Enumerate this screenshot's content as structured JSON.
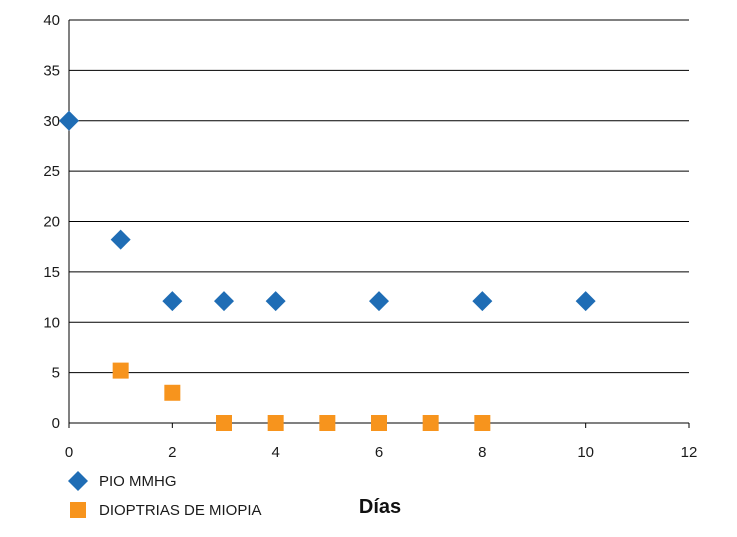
{
  "chart_data": {
    "type": "scatter",
    "xlabel": "Días",
    "ylabel": "",
    "xlim": [
      0,
      12
    ],
    "ylim": [
      0,
      40
    ],
    "x_ticks": [
      0,
      2,
      4,
      6,
      8,
      10,
      12
    ],
    "y_ticks": [
      0,
      5,
      10,
      15,
      20,
      25,
      30,
      35,
      40
    ],
    "grid": "horizontal",
    "legend_position": "bottom-left",
    "series": [
      {
        "name": "PIO MMHG",
        "marker": "diamond",
        "color": "#1F6DB5",
        "points": [
          [
            0,
            30
          ],
          [
            1,
            18.2
          ],
          [
            2,
            12.1
          ],
          [
            3,
            12.1
          ],
          [
            4,
            12.1
          ],
          [
            6,
            12.1
          ],
          [
            8,
            12.1
          ],
          [
            10,
            12.1
          ]
        ]
      },
      {
        "name": "DIOPTRIAS DE MIOPIA",
        "marker": "square",
        "color": "#F7941D",
        "points": [
          [
            1,
            5.2
          ],
          [
            2,
            3
          ],
          [
            3,
            0
          ],
          [
            4,
            0
          ],
          [
            5,
            0
          ],
          [
            6,
            0
          ],
          [
            7,
            0
          ],
          [
            8,
            0
          ]
        ]
      }
    ]
  }
}
